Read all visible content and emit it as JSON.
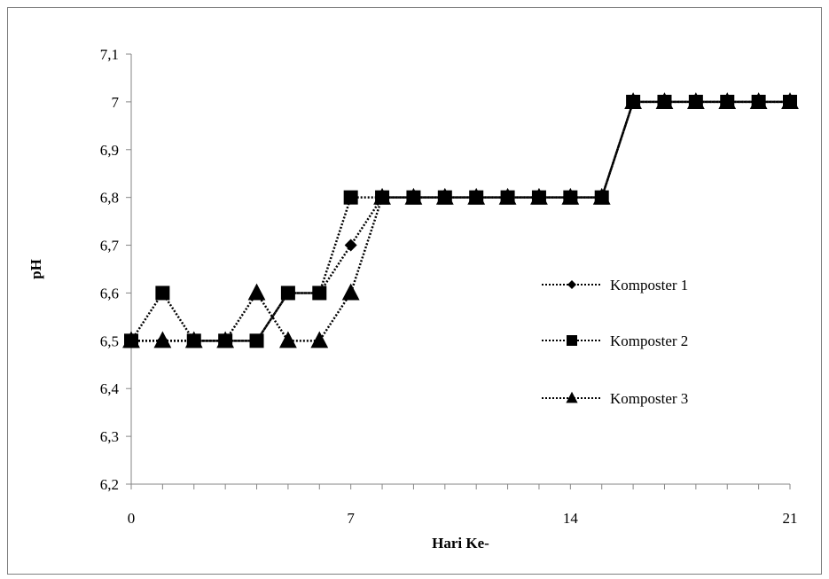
{
  "chart_data": {
    "type": "line",
    "title": "",
    "xlabel": "Hari Ke-",
    "ylabel": "pH",
    "xlim": [
      0,
      21
    ],
    "ylim": [
      6.2,
      7.1
    ],
    "x_ticks": [
      0,
      7,
      14,
      21
    ],
    "x_tick_labels": [
      "0",
      "7",
      "14",
      "21"
    ],
    "y_ticks": [
      6.2,
      6.3,
      6.4,
      6.5,
      6.6,
      6.7,
      6.8,
      6.9,
      7.0,
      7.1
    ],
    "y_tick_labels": [
      "6,2",
      "6,3",
      "6,4",
      "6,5",
      "6,6",
      "6,7",
      "6,8",
      "6,9",
      "7",
      "7,1"
    ],
    "grid": false,
    "legend_position": "right",
    "x": [
      0,
      1,
      2,
      3,
      4,
      5,
      6,
      7,
      8,
      9,
      10,
      11,
      12,
      13,
      14,
      15,
      16,
      17,
      18,
      19,
      20,
      21
    ],
    "series": [
      {
        "name": "Komposter 1",
        "marker": "diamond",
        "values": [
          6.5,
          6.5,
          6.5,
          6.5,
          6.5,
          6.6,
          6.6,
          6.7,
          6.8,
          6.8,
          6.8,
          6.8,
          6.8,
          6.8,
          6.8,
          6.8,
          7.0,
          7.0,
          7.0,
          7.0,
          7.0,
          7.0
        ]
      },
      {
        "name": "Komposter 2",
        "marker": "square",
        "values": [
          6.5,
          6.6,
          6.5,
          6.5,
          6.5,
          6.6,
          6.6,
          6.8,
          6.8,
          6.8,
          6.8,
          6.8,
          6.8,
          6.8,
          6.8,
          6.8,
          7.0,
          7.0,
          7.0,
          7.0,
          7.0,
          7.0
        ]
      },
      {
        "name": "Komposter 3",
        "marker": "triangle",
        "values": [
          6.5,
          6.5,
          6.5,
          6.5,
          6.6,
          6.5,
          6.5,
          6.6,
          6.8,
          6.8,
          6.8,
          6.8,
          6.8,
          6.8,
          6.8,
          6.8,
          7.0,
          7.0,
          7.0,
          7.0,
          7.0,
          7.0
        ]
      }
    ],
    "colors": {
      "line": "#000000",
      "marker": "#000000",
      "frame": "#7f7f7f"
    }
  }
}
